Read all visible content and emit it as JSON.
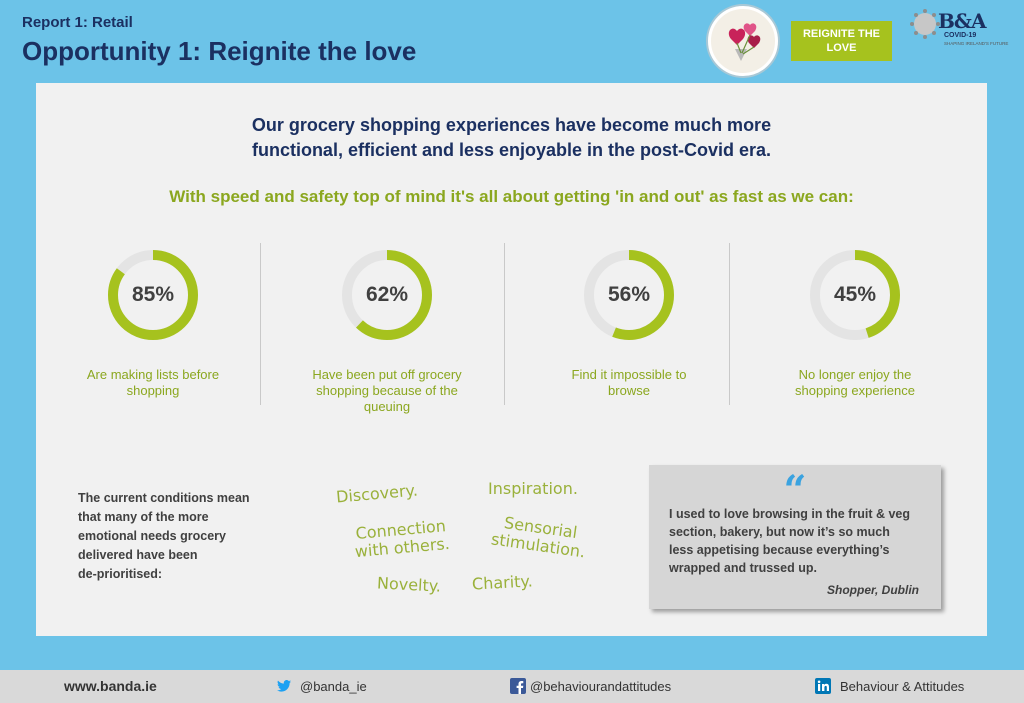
{
  "header": {
    "report_label": "Report 1: Retail",
    "title": "Opportunity 1:  Reignite the love",
    "badge_line1": "REIGNITE THE",
    "badge_line2": "LOVE",
    "logo_text": "B&A",
    "logo_sub1": "COVID-19",
    "logo_sub2": "SHAPING IRELAND'S FUTURE"
  },
  "main": {
    "headline_line1": "Our grocery shopping experiences have become much more",
    "headline_line2": "functional, efficient and less enjoyable in the post-Covid era.",
    "subheadline": "With speed and safety top of mind it's all about getting 'in and out' as fast as we can:",
    "stats": [
      {
        "value": "85%",
        "fraction": 0.85,
        "label_line1": "Are making lists before",
        "label_line2": "shopping",
        "label_line3": ""
      },
      {
        "value": "62%",
        "fraction": 0.62,
        "label_line1": "Have been put off grocery",
        "label_line2": "shopping because of the",
        "label_line3": "queuing"
      },
      {
        "value": "56%",
        "fraction": 0.56,
        "label_line1": "Find it impossible to",
        "label_line2": "browse",
        "label_line3": ""
      },
      {
        "value": "45%",
        "fraction": 0.45,
        "label_line1": "No longer enjoy the",
        "label_line2": "shopping experience",
        "label_line3": ""
      }
    ],
    "conditions_lines": [
      "The current conditions mean",
      "that many of the more",
      "emotional needs grocery",
      "delivered have been",
      "de-prioritised:"
    ],
    "needs": {
      "discovery": "Discovery.",
      "inspiration": "Inspiration.",
      "connection_1": "Connection",
      "connection_2": "with others.",
      "sensorial_1": "Sensorial",
      "sensorial_2": "stimulation.",
      "novelty": "Novelty.",
      "charity": "Charity."
    },
    "quote": {
      "mark": "“",
      "lines": [
        "I used to love browsing in the fruit & veg",
        "section, bakery, but now it’s so much",
        "less appetising because everything’s",
        "wrapped and trussed up."
      ],
      "source": "Shopper, Dublin"
    }
  },
  "footer": {
    "website": "www.banda.ie",
    "twitter": "@banda_ie",
    "facebook": "@behaviourandattitudes",
    "linkedin": "Behaviour & Attitudes"
  },
  "colors": {
    "background": "#6cc3e8",
    "navy": "#1b3061",
    "green": "#a6c21e",
    "ring_track": "#e4e4e4",
    "quote_blue": "#3ba3e0"
  },
  "icons": [
    "hearts-illustration-icon",
    "ba-logo-icon",
    "twitter-icon",
    "facebook-icon",
    "linkedin-icon",
    "quote-icon"
  ]
}
